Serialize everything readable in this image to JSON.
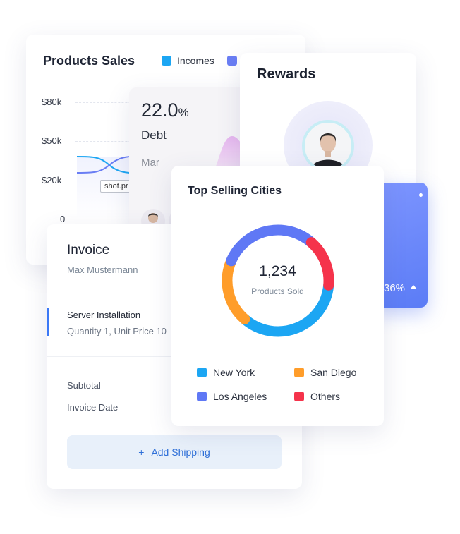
{
  "colors": {
    "new_york": "#1ca6f3",
    "los_angeles": "#5f78f5",
    "san_diego": "#ff9d2a",
    "others": "#f5334b",
    "incomes": "#1ca6f3",
    "second_series": "#6a7ef4",
    "blue_card": "#6a86fb"
  },
  "sales": {
    "title": "Products Sales",
    "legend": [
      "Incomes"
    ],
    "y_ticks": [
      "$80k",
      "$50k",
      "$20k",
      "0"
    ],
    "tooltip": "shot.pr"
  },
  "debt": {
    "value": "22.0",
    "unit": "%",
    "label": "Debt",
    "month": "Mar"
  },
  "rewards": {
    "title": "Rewards"
  },
  "stat": {
    "value": "36%"
  },
  "invoice": {
    "title": "Invoice",
    "customer": "Max Mustermann",
    "item_name": "Server Installation",
    "item_detail": "Quantity 1, Unit Price 10",
    "subtotal_label": "Subtotal",
    "date_label": "Invoice Date",
    "shipping_button": "Add Shipping",
    "shipping_icon": "+"
  },
  "cities": {
    "title": "Top Selling Cities",
    "total": "1,234",
    "total_label": "Products Sold",
    "legend": [
      {
        "name": "New York",
        "color": "#1ca6f3"
      },
      {
        "name": "San Diego",
        "color": "#ff9d2a"
      },
      {
        "name": "Los Angeles",
        "color": "#5f78f5"
      },
      {
        "name": "Others",
        "color": "#f5334b"
      }
    ]
  },
  "chart_data": [
    {
      "type": "pie",
      "categories": [
        "New York",
        "San Diego",
        "Los Angeles",
        "Others"
      ],
      "values": [
        35,
        20,
        30,
        15
      ]
    }
  ]
}
